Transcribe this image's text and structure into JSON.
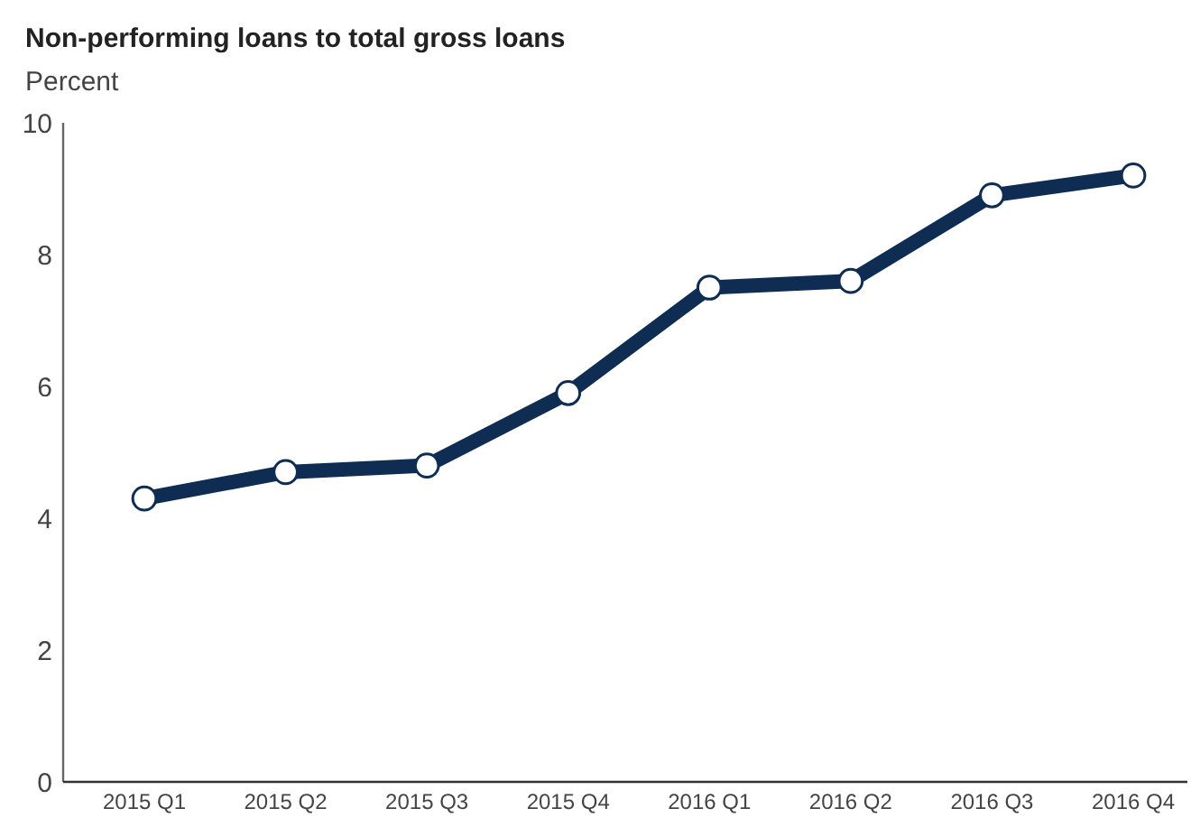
{
  "chart_data": {
    "type": "line",
    "title": "Non-performing loans to total gross loans",
    "ylabel": "Percent",
    "categories": [
      "2015 Q1",
      "2015 Q2",
      "2015 Q3",
      "2015 Q4",
      "2016 Q1",
      "2016 Q2",
      "2016 Q3",
      "2016 Q4"
    ],
    "series": [
      {
        "color": "#0f2d52",
        "values": [
          4.3,
          4.7,
          4.8,
          5.9,
          7.5,
          7.6,
          8.9,
          9.2
        ]
      }
    ],
    "ylim": [
      0,
      10
    ],
    "yticks": [
      0,
      2,
      4,
      6,
      8,
      10
    ],
    "grid": false,
    "marker": "circle",
    "line_style": "solid"
  }
}
